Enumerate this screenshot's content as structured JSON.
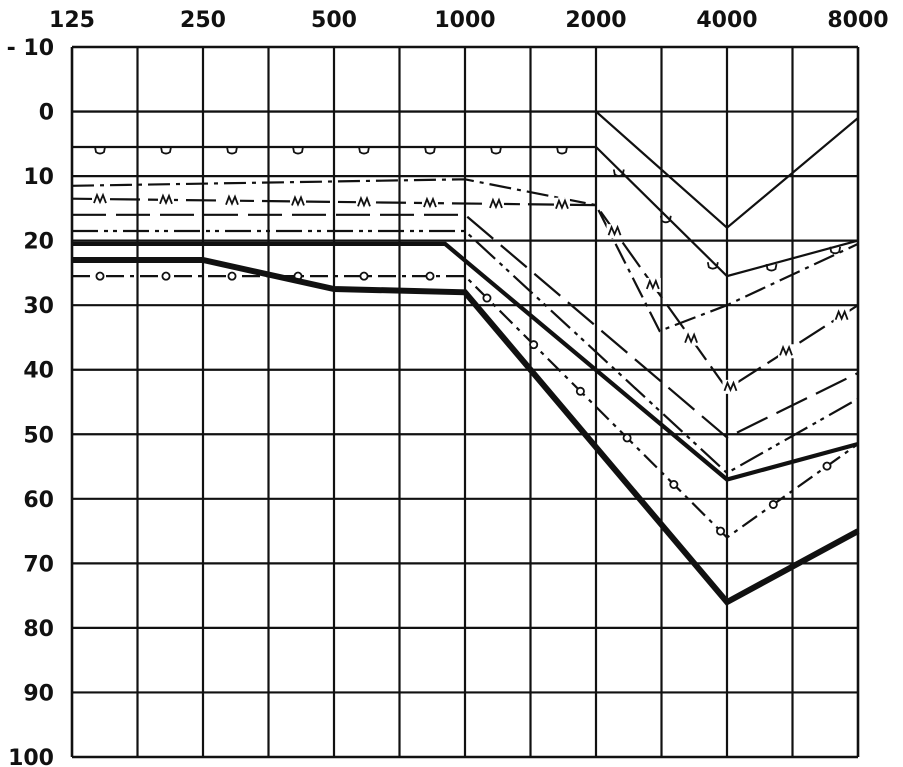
{
  "chart_data": {
    "type": "line",
    "title": "",
    "xlabel": "",
    "ylabel": "",
    "x_tick_labels": [
      "125",
      "250",
      "500",
      "1000",
      "2000",
      "4000",
      "8000"
    ],
    "y_tick_labels": [
      "- 10",
      "0",
      "10",
      "20",
      "30",
      "40",
      "50",
      "60",
      "70",
      "80",
      "90",
      "100"
    ],
    "x_scale": "log2",
    "xlim": [
      125,
      8000
    ],
    "ylim": [
      -10,
      100
    ],
    "y_inverted": true,
    "grid": true,
    "legend": "none",
    "series": [
      {
        "style": "solid",
        "points": [
          [
            125,
            0
          ],
          [
            2000,
            0
          ],
          [
            4000,
            18
          ],
          [
            8000,
            1
          ]
        ]
      },
      {
        "style": "cup-marks",
        "marker": "cup",
        "points": [
          [
            125,
            5.5
          ],
          [
            2000,
            5.5
          ],
          [
            4000,
            25.5
          ],
          [
            8000,
            20
          ]
        ]
      },
      {
        "style": "dash-dot",
        "points": [
          [
            125,
            11.5
          ],
          [
            1000,
            10.5
          ],
          [
            2000,
            14.5
          ],
          [
            2800,
            34
          ],
          [
            4000,
            30
          ],
          [
            8000,
            20.5
          ]
        ]
      },
      {
        "style": "m-marks",
        "marker": "M",
        "points": [
          [
            125,
            13.5
          ],
          [
            2000,
            14.5
          ],
          [
            4000,
            43
          ],
          [
            8000,
            30
          ]
        ]
      },
      {
        "style": "long-dash",
        "points": [
          [
            125,
            16
          ],
          [
            1000,
            16
          ],
          [
            4000,
            50.5
          ],
          [
            8000,
            40.5
          ]
        ]
      },
      {
        "style": "dash-dot-dot",
        "points": [
          [
            125,
            18.5
          ],
          [
            1000,
            18.5
          ],
          [
            4000,
            56
          ],
          [
            8000,
            44.5
          ]
        ]
      },
      {
        "style": "thick-solid",
        "points": [
          [
            125,
            20.5
          ],
          [
            900,
            20.5
          ],
          [
            4000,
            57
          ],
          [
            8000,
            51.5
          ]
        ]
      },
      {
        "style": "circle-marks",
        "marker": "circle",
        "points": [
          [
            125,
            25.5
          ],
          [
            1000,
            25.5
          ],
          [
            4000,
            66
          ],
          [
            8000,
            51.5
          ]
        ]
      },
      {
        "style": "double-solid",
        "points": [
          [
            125,
            23
          ],
          [
            250,
            23
          ],
          [
            500,
            27.5
          ],
          [
            1000,
            28
          ],
          [
            4000,
            76
          ],
          [
            8000,
            65
          ]
        ]
      }
    ]
  }
}
